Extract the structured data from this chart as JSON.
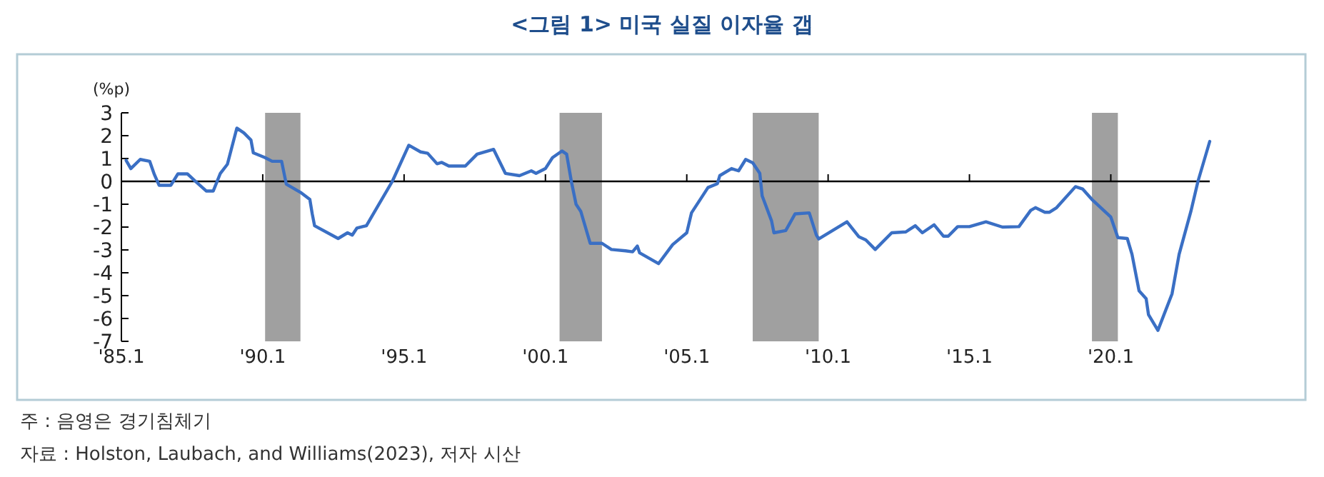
{
  "chart_data": {
    "type": "line",
    "title": "<그림 1> 미국 실질 이자율 갭",
    "ylabel": "(%p)",
    "annotations": [
      "주 : 음영은 경기침체기",
      "자료 : Holston, Laubach, and Williams(2023), 저자 시산"
    ],
    "xlim": [
      "1985-01",
      "2023-07"
    ],
    "ylim": [
      -7,
      3
    ],
    "xticks": [
      {
        "value": "1985-01",
        "label": "'85.1"
      },
      {
        "value": "1990-01",
        "label": "'90.1"
      },
      {
        "value": "1995-01",
        "label": "'95.1"
      },
      {
        "value": "2000-01",
        "label": "'00.1"
      },
      {
        "value": "2005-01",
        "label": "'05.1"
      },
      {
        "value": "2010-01",
        "label": "'10.1"
      },
      {
        "value": "2015-01",
        "label": "'15.1"
      },
      {
        "value": "2020-01",
        "label": "'20.1"
      }
    ],
    "yticks": [
      3,
      2,
      1,
      0,
      -1,
      -2,
      -3,
      -4,
      -5,
      -6,
      -7
    ],
    "bands": [
      {
        "axis": "x",
        "from": "1990-02",
        "to": "1991-05",
        "color": "#a0a0a0"
      },
      {
        "axis": "x",
        "from": "2000-07",
        "to": "2002-01",
        "color": "#a0a0a0"
      },
      {
        "axis": "x",
        "from": "2007-05",
        "to": "2009-09",
        "color": "#a0a0a0"
      },
      {
        "axis": "x",
        "from": "2019-05",
        "to": "2020-04",
        "color": "#a0a0a0"
      }
    ],
    "color": "#3a6fc4",
    "x": [
      "1985-03",
      "1985-05",
      "1985-09",
      "1986-01",
      "1986-03",
      "1986-05",
      "1986-10",
      "1987-01",
      "1987-05",
      "1987-08",
      "1988-01",
      "1988-04",
      "1988-07",
      "1988-10",
      "1989-02",
      "1989-05",
      "1989-08",
      "1989-09",
      "1990-02",
      "1990-05",
      "1990-09",
      "1990-11",
      "1991-05",
      "1991-09",
      "1991-10",
      "1991-11",
      "1992-09",
      "1993-01",
      "1993-03",
      "1993-05",
      "1993-09",
      "1994-08",
      "1995-03",
      "1995-08",
      "1995-11",
      "1996-03",
      "1996-05",
      "1996-08",
      "1997-03",
      "1997-08",
      "1998-03",
      "1998-08",
      "1999-02",
      "1999-07",
      "1999-09",
      "2000-01",
      "2000-04",
      "2000-08",
      "2000-10",
      "2000-12",
      "2001-02",
      "2001-04",
      "2001-08",
      "2002-01",
      "2002-05",
      "2002-11",
      "2003-02",
      "2003-04",
      "2003-05",
      "2004-01",
      "2004-07",
      "2005-01",
      "2005-03",
      "2005-10",
      "2006-02",
      "2006-03",
      "2006-08",
      "2006-11",
      "2007-02",
      "2007-05",
      "2007-08",
      "2007-09",
      "2008-01",
      "2008-02",
      "2008-07",
      "2008-11",
      "2009-05",
      "2009-08",
      "2009-09",
      "2010-09",
      "2011-02",
      "2011-05",
      "2011-09",
      "2012-04",
      "2012-10",
      "2013-02",
      "2013-05",
      "2013-10",
      "2014-02",
      "2014-04",
      "2014-08",
      "2015-01",
      "2015-08",
      "2016-03",
      "2016-10",
      "2017-03",
      "2017-05",
      "2017-09",
      "2017-11",
      "2018-02",
      "2018-10",
      "2019-01",
      "2019-05",
      "2020-01",
      "2020-04",
      "2020-08",
      "2020-10",
      "2021-01",
      "2021-04",
      "2021-05",
      "2021-09",
      "2022-03",
      "2022-06",
      "2022-11",
      "2023-02",
      "2023-07"
    ],
    "values": [
      0.92,
      0.56,
      0.96,
      0.88,
      0.3,
      -0.17,
      -0.17,
      0.33,
      0.33,
      0.04,
      -0.42,
      -0.42,
      0.35,
      0.75,
      2.33,
      2.12,
      1.81,
      1.25,
      1.04,
      0.88,
      0.88,
      -0.12,
      -0.48,
      -0.79,
      -1.42,
      -1.94,
      -2.5,
      -2.25,
      -2.35,
      -2.04,
      -1.94,
      0,
      1.58,
      1.29,
      1.23,
      0.77,
      0.83,
      0.67,
      0.67,
      1.19,
      1.4,
      0.35,
      0.25,
      0.46,
      0.35,
      0.56,
      1.04,
      1.33,
      1.19,
      0,
      -1.0,
      -1.31,
      -2.71,
      -2.71,
      -2.98,
      -3.04,
      -3.08,
      -2.83,
      -3.13,
      -3.6,
      -2.77,
      -2.25,
      -1.38,
      -0.27,
      -0.1,
      0.25,
      0.56,
      0.46,
      0.96,
      0.81,
      0.35,
      -0.63,
      -1.73,
      -2.25,
      -2.15,
      -1.42,
      -1.38,
      -2.35,
      -2.52,
      -1.77,
      -2.42,
      -2.56,
      -2.98,
      -2.25,
      -2.21,
      -1.94,
      -2.25,
      -1.9,
      -2.4,
      -2.4,
      -1.98,
      -1.98,
      -1.77,
      -2.0,
      -1.98,
      -1.27,
      -1.15,
      -1.35,
      -1.35,
      -1.15,
      -0.23,
      -0.33,
      -0.79,
      -1.56,
      -2.46,
      -2.5,
      -3.19,
      -4.79,
      -5.13,
      -5.83,
      -6.52,
      -4.92,
      -3.19,
      -1.31,
      0,
      1.75
    ]
  }
}
